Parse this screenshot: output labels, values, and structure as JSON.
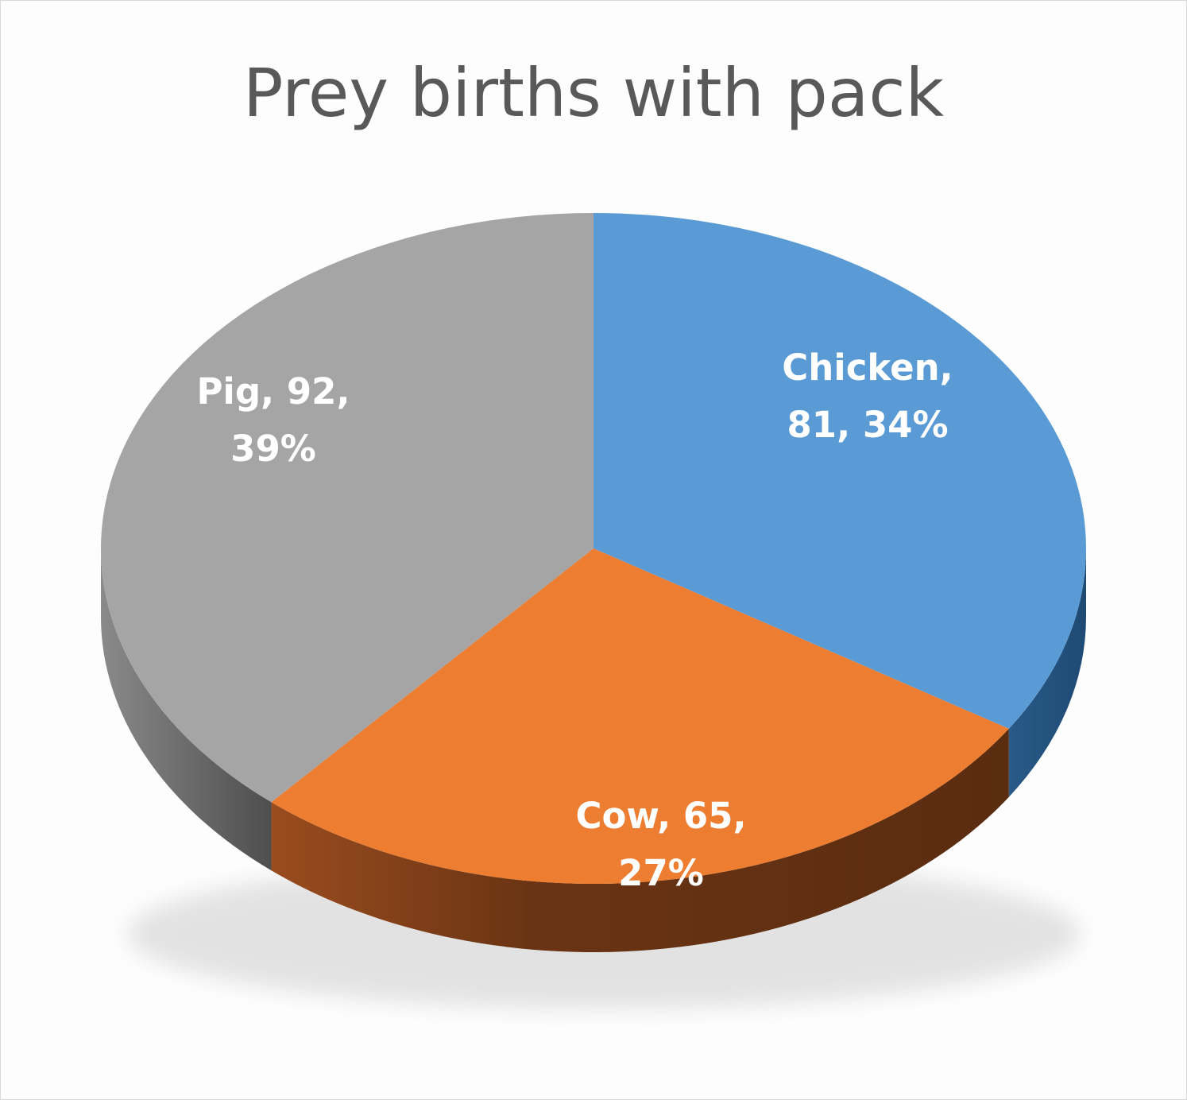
{
  "chart_data": {
    "type": "pie",
    "title": "Prey births with pack",
    "slices": [
      {
        "label": "Chicken",
        "value": 81,
        "percent": "34%",
        "color": "#5B9BD5",
        "side_color": "#2E5E8C",
        "label_line1": "Chicken,",
        "label_line2": "81, 34%"
      },
      {
        "label": "Cow",
        "value": 65,
        "percent": "27%",
        "color": "#ED7D31",
        "side_color": "#6A3414",
        "label_line1": "Cow, 65,",
        "label_line2": "27%"
      },
      {
        "label": "Pig",
        "value": 92,
        "percent": "39%",
        "color": "#A5A5A5",
        "side_color": "#5E5E5E",
        "label_line1": "Pig, 92,",
        "label_line2": "39%"
      }
    ],
    "style": "3d-pie",
    "legend": "none",
    "data_labels": "category, value, percentage"
  }
}
